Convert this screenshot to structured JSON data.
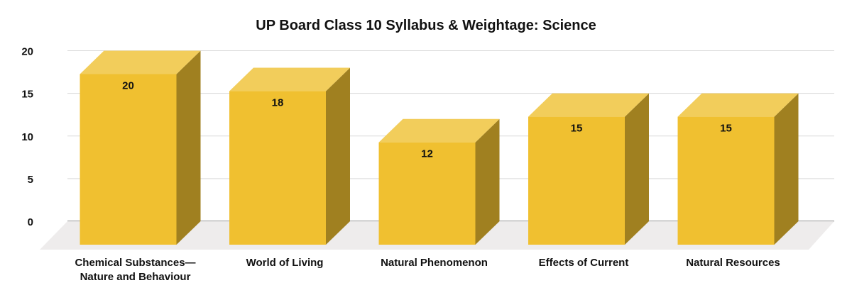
{
  "chart_data": {
    "type": "bar",
    "style": "3d",
    "title": "UP Board Class 10 Syllabus & Weightage: Science",
    "categories": [
      [
        "Chemical Substances—",
        "Nature and Behaviour"
      ],
      [
        "World of Living"
      ],
      [
        "Natural Phenomenon"
      ],
      [
        "Effects of Current"
      ],
      [
        "Natural Resources"
      ]
    ],
    "values": [
      20,
      18,
      12,
      15,
      15
    ],
    "data_labels": [
      "20",
      "18",
      "12",
      "15",
      "15"
    ],
    "yticks": [
      "0",
      "5",
      "10",
      "15",
      "20"
    ],
    "ylim": [
      0,
      20
    ],
    "xlabel": "",
    "ylabel": "",
    "grid": true,
    "legend": "none",
    "colors": {
      "front": "#F0C030",
      "top": "#F2CD5B",
      "side": "#A08020",
      "floor": "#EEECEC",
      "grid": "#D9D9D9",
      "axis": "#333333"
    }
  }
}
